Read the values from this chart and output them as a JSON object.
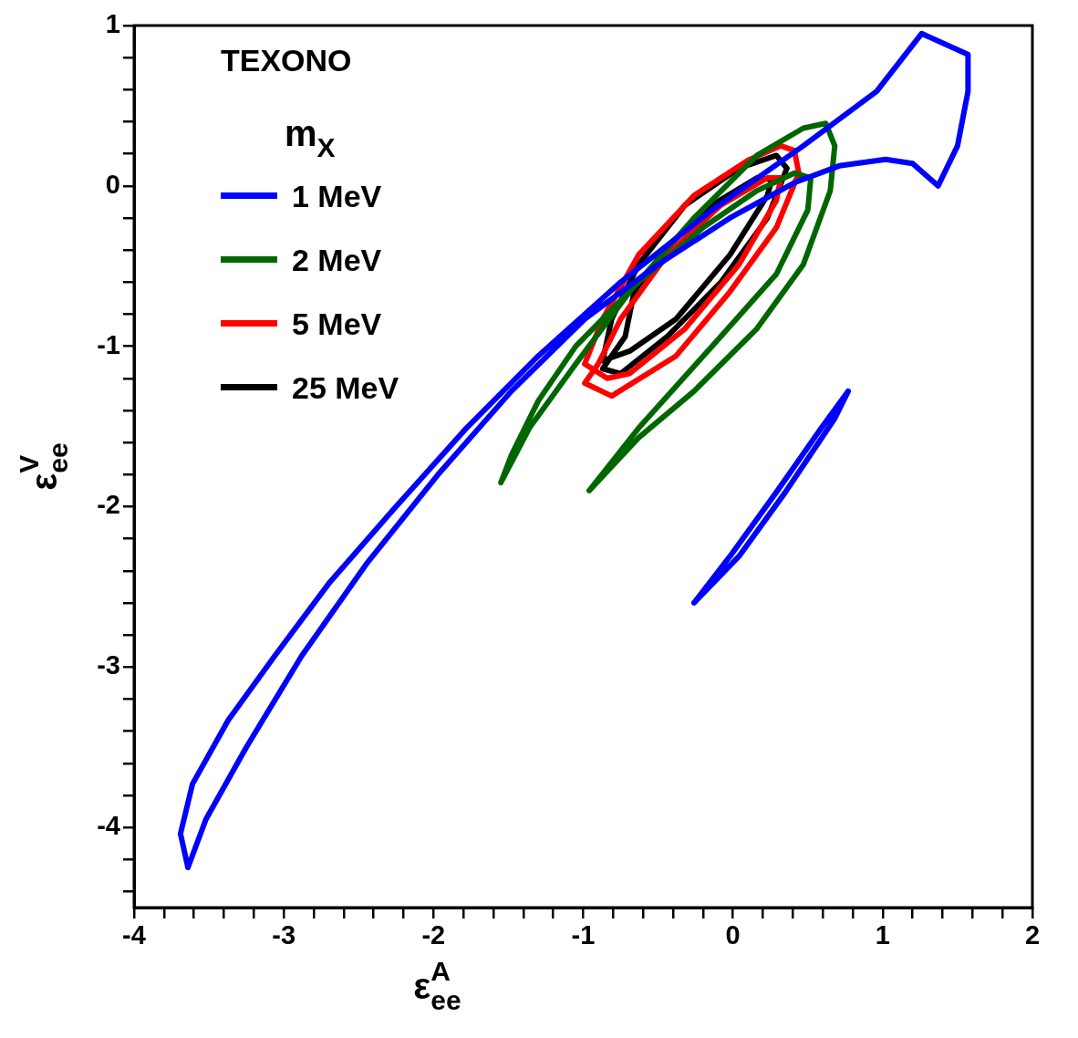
{
  "chart_data": {
    "type": "line",
    "xlabel": "ε$_{ee}$$^{A}$",
    "ylabel": "ε$_{ee}$$^{V}$",
    "legend_title": "m$_{X}$",
    "annotations": [
      "TEXONO"
    ],
    "legend": "top left",
    "grid": false,
    "marker": "none",
    "line_style": "solid",
    "xlim": [
      -4,
      2
    ],
    "ylim": [
      -4.5,
      1
    ],
    "xticks": [
      -4,
      {
        "value": -3.8,
        "label": null
      },
      {
        "value": -3.6,
        "label": null
      },
      {
        "value": -3.4,
        "label": null
      },
      {
        "value": -3.2,
        "label": null
      },
      -3,
      {
        "value": -2.8,
        "label": null
      },
      {
        "value": -2.6,
        "label": null
      },
      {
        "value": -2.4,
        "label": null
      },
      {
        "value": -2.2,
        "label": null
      },
      -2,
      {
        "value": -1.8,
        "label": null
      },
      {
        "value": -1.6,
        "label": null
      },
      {
        "value": -1.4,
        "label": null
      },
      {
        "value": -1.2,
        "label": null
      },
      -1,
      {
        "value": -0.8,
        "label": null
      },
      {
        "value": -0.6,
        "label": null
      },
      {
        "value": -0.4,
        "label": null
      },
      {
        "value": -0.2,
        "label": null
      },
      0,
      {
        "value": 0.2,
        "label": null
      },
      {
        "value": 0.4,
        "label": null
      },
      {
        "value": 0.6,
        "label": null
      },
      {
        "value": 0.8,
        "label": null
      },
      1,
      {
        "value": 1.2,
        "label": null
      },
      {
        "value": 1.4,
        "label": null
      },
      {
        "value": 1.6,
        "label": null
      },
      {
        "value": 1.8,
        "label": null
      },
      2
    ],
    "yticks": [
      {
        "value": -4.4,
        "label": null
      },
      {
        "value": -4.2,
        "label": null
      },
      -4,
      {
        "value": -3.8,
        "label": null
      },
      {
        "value": -3.6,
        "label": null
      },
      {
        "value": -3.4,
        "label": null
      },
      {
        "value": -3.2,
        "label": null
      },
      -3,
      {
        "value": -2.8,
        "label": null
      },
      {
        "value": -2.6,
        "label": null
      },
      {
        "value": -2.4,
        "label": null
      },
      {
        "value": -2.2,
        "label": null
      },
      -2,
      {
        "value": -1.8,
        "label": null
      },
      {
        "value": -1.6,
        "label": null
      },
      {
        "value": -1.4,
        "label": null
      },
      {
        "value": -1.2,
        "label": null
      },
      -1,
      {
        "value": -0.8,
        "label": null
      },
      {
        "value": -0.6,
        "label": null
      },
      {
        "value": -0.4,
        "label": null
      },
      {
        "value": -0.2,
        "label": null
      },
      0,
      {
        "value": 0.2,
        "label": null
      },
      {
        "value": 0.4,
        "label": null
      },
      {
        "value": 0.6,
        "label": null
      },
      {
        "value": 0.8,
        "label": null
      },
      1
    ],
    "series": [
      {
        "name": "1 MeV",
        "color": "#0000ff",
        "x": [
          -3.64,
          -3.52,
          -3.25,
          -2.88,
          -2.45,
          -1.97,
          -1.48,
          -0.99,
          -0.5,
          -0.02,
          0.41,
          0.71,
          1.02,
          1.2,
          1.37,
          1.5,
          1.57,
          null,
          1.57,
          1.57,
          1.26,
          0.96,
          0.47,
          -0.14,
          -0.75,
          -1.3,
          -1.78,
          -2.27,
          -2.7,
          -3.06,
          -3.37,
          -3.61,
          -3.69,
          null,
          -3.69,
          -3.64,
          null,
          -0.26,
          -0.02,
          0.29,
          0.59,
          0.77,
          null,
          0.77,
          0.68,
          0.35,
          0.04,
          -0.26
        ],
        "values": [
          -4.25,
          -3.95,
          -3.5,
          -2.93,
          -2.36,
          -1.8,
          -1.28,
          -0.83,
          -0.49,
          -0.2,
          0.02,
          0.125,
          0.165,
          0.14,
          0.0,
          0.25,
          0.59,
          null,
          0.59,
          0.82,
          0.95,
          0.59,
          0.25,
          -0.15,
          -0.6,
          -1.06,
          -1.51,
          -2.02,
          -2.48,
          -2.93,
          -3.33,
          -3.73,
          -4.04,
          null,
          -4.04,
          -4.25,
          null,
          -2.6,
          -2.31,
          -1.91,
          -1.51,
          -1.28,
          null,
          -1.28,
          -1.45,
          -1.91,
          -2.31,
          -2.6
        ]
      },
      {
        "name": "2 MeV",
        "color": "#006600",
        "x": [
          -1.55,
          -1.36,
          -1.05,
          -0.69,
          -0.26,
          0.16,
          0.47,
          0.62,
          0.68,
          null,
          0.68,
          0.65,
          0.47,
          0.16,
          -0.26,
          -0.63,
          -0.96,
          null,
          -0.96,
          -0.63,
          -0.14,
          0.29,
          0.5,
          0.52,
          null,
          0.52,
          0.41,
          0.16,
          -0.2,
          -0.63,
          -1.05,
          -1.3,
          -1.48,
          -1.55
        ],
        "values": [
          -1.85,
          -1.51,
          -1.11,
          -0.66,
          -0.2,
          0.19,
          0.36,
          0.39,
          0.25,
          null,
          0.25,
          -0.03,
          -0.49,
          -0.89,
          -1.28,
          -1.57,
          -1.9,
          null,
          -1.9,
          -1.51,
          -1.0,
          -0.55,
          -0.15,
          0.05,
          null,
          0.05,
          0.08,
          -0.03,
          -0.26,
          -0.6,
          -1.0,
          -1.34,
          -1.68,
          -1.85
        ]
      },
      {
        "name": "5 MeV",
        "color": "#ff0000",
        "x": [
          -0.99,
          -0.81,
          -0.38,
          -0.02,
          0.29,
          0.44,
          null,
          0.44,
          0.41,
          0.32,
          0.1,
          -0.26,
          -0.63,
          -0.87,
          -0.99,
          null,
          -0.99,
          -0.84,
          -0.69,
          -0.32,
          0.04,
          0.29,
          0.32,
          null,
          0.32,
          0.23,
          -0.08,
          -0.44,
          -0.75,
          -0.9,
          -0.99
        ],
        "values": [
          -1.23,
          -1.31,
          -1.06,
          -0.66,
          -0.26,
          0.08,
          null,
          0.08,
          0.22,
          0.25,
          0.16,
          -0.06,
          -0.43,
          -0.83,
          -1.11,
          null,
          -1.11,
          -1.2,
          -1.17,
          -0.89,
          -0.49,
          -0.09,
          0.05,
          null,
          0.05,
          0.05,
          -0.12,
          -0.43,
          -0.83,
          -1.11,
          -1.23
        ]
      },
      {
        "name": "25 MeV",
        "color": "#000000",
        "x": [
          -0.87,
          -0.75,
          -0.44,
          -0.08,
          0.23,
          0.36,
          null,
          0.36,
          0.29,
          0.04,
          -0.32,
          -0.63,
          -0.81,
          -0.87,
          null,
          -0.87,
          -0.69,
          -0.38,
          -0.02,
          0.23,
          0.26,
          null,
          0.26,
          0.16,
          -0.14,
          -0.44,
          -0.66,
          -0.72,
          -0.87
        ],
        "values": [
          -1.14,
          -1.17,
          -0.94,
          -0.6,
          -0.2,
          0.11,
          null,
          0.11,
          0.19,
          0.11,
          -0.12,
          -0.49,
          -0.83,
          -1.09,
          null,
          -1.09,
          -1.03,
          -0.83,
          -0.43,
          -0.06,
          0.04,
          null,
          0.04,
          0.05,
          -0.12,
          -0.38,
          -0.66,
          -0.94,
          -1.14
        ]
      }
    ]
  }
}
